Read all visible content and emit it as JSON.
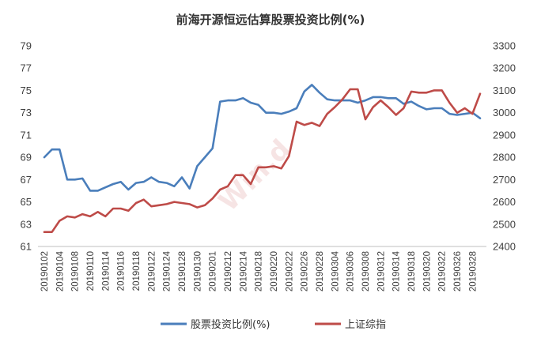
{
  "chart_data": {
    "type": "line",
    "title": "前海开源恒远估算股票投资比例(%)",
    "watermark": "Win.d",
    "x": [
      "20190102",
      "20190103",
      "20190104",
      "20190107",
      "20190108",
      "20190109",
      "20190110",
      "20190111",
      "20190114",
      "20190115",
      "20190116",
      "20190117",
      "20190118",
      "20190121",
      "20190122",
      "20190123",
      "20190124",
      "20190125",
      "20190128",
      "20190129",
      "20190130",
      "20190131",
      "20190201",
      "20190211",
      "20190212",
      "20190213",
      "20190214",
      "20190215",
      "20190218",
      "20190219",
      "20190220",
      "20190221",
      "20190222",
      "20190225",
      "20190226",
      "20190227",
      "20190228",
      "20190301",
      "20190304",
      "20190305",
      "20190306",
      "20190307",
      "20190308",
      "20190311",
      "20190312",
      "20190313",
      "20190314",
      "20190315",
      "20190318",
      "20190319",
      "20190320",
      "20190321",
      "20190322",
      "20190325",
      "20190326",
      "20190327",
      "20190328",
      "20190329"
    ],
    "x_tick_labels": [
      "20190102",
      "20190104",
      "20190108",
      "20190110",
      "20190114",
      "20190116",
      "20190118",
      "20190122",
      "20190124",
      "20190128",
      "20190130",
      "20190201",
      "20190212",
      "20190214",
      "20190218",
      "20190220",
      "20190222",
      "20190226",
      "20190228",
      "20190304",
      "20190306",
      "20190308",
      "20190312",
      "20190314",
      "20190318",
      "20190320",
      "20190322",
      "20190326",
      "20190328"
    ],
    "y_left_ticks": [
      "61",
      "63",
      "65",
      "67",
      "69",
      "71",
      "73",
      "75",
      "77",
      "79"
    ],
    "y_right_ticks": [
      "2400",
      "2500",
      "2600",
      "2700",
      "2800",
      "2900",
      "3000",
      "3100",
      "3200",
      "3300"
    ],
    "ylim_left": [
      61,
      79
    ],
    "ylim_right": [
      2400,
      3300
    ],
    "grid": false,
    "legend_position": "bottom",
    "series": [
      {
        "name": "股票投资比例(%)",
        "axis": "left",
        "color": "#4a7ebb",
        "values": [
          69.0,
          69.7,
          69.7,
          67.0,
          67.0,
          67.1,
          66.0,
          66.0,
          66.3,
          66.6,
          66.8,
          66.1,
          66.7,
          66.8,
          67.2,
          66.8,
          66.7,
          66.4,
          67.2,
          66.2,
          68.2,
          69.0,
          69.8,
          74.0,
          74.1,
          74.1,
          74.3,
          73.9,
          73.7,
          73.0,
          73.0,
          72.9,
          73.1,
          73.4,
          74.9,
          75.5,
          74.8,
          74.2,
          74.1,
          74.1,
          74.1,
          73.9,
          74.1,
          74.4,
          74.4,
          74.3,
          74.3,
          73.8,
          74.0,
          73.6,
          73.3,
          73.4,
          73.4,
          72.9,
          72.8,
          72.9,
          73.0,
          72.5
        ]
      },
      {
        "name": "上证综指",
        "axis": "right",
        "color": "#be4b48",
        "values": [
          2465,
          2465,
          2515,
          2535,
          2530,
          2545,
          2535,
          2555,
          2535,
          2570,
          2570,
          2560,
          2595,
          2610,
          2580,
          2585,
          2590,
          2600,
          2595,
          2590,
          2575,
          2585,
          2615,
          2655,
          2670,
          2720,
          2720,
          2680,
          2755,
          2755,
          2760,
          2750,
          2805,
          2960,
          2945,
          2955,
          2940,
          2995,
          3025,
          3060,
          3105,
          3105,
          2970,
          3025,
          3055,
          3025,
          2990,
          3020,
          3095,
          3090,
          3090,
          3100,
          3100,
          3045,
          3000,
          3020,
          2995,
          3085
        ]
      }
    ]
  }
}
